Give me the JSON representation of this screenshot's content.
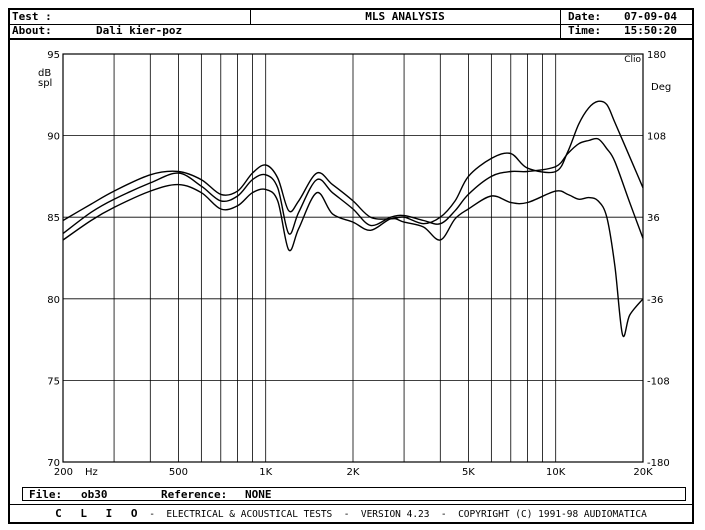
{
  "header": {
    "test_label": "Test :",
    "title": "MLS ANALYSIS",
    "date_label": "Date:",
    "date": "07-09-04",
    "about_label": "About:",
    "about": "Dali kier-poz",
    "time_label": "Time:",
    "time": "15:50:20"
  },
  "file_bar": {
    "file_label": "File:",
    "file": "ob30",
    "reference_label": "Reference:",
    "reference": "NONE"
  },
  "footer": {
    "brand": "C L I O",
    "text": " -  ELECTRICAL & ACOUSTICAL TESTS  -  VERSION 4.23  -  COPYRIGHT (C) 1991-98 AUDIOMATICA"
  },
  "chart_data": {
    "type": "line",
    "x_scale": "log",
    "xlim": [
      200,
      20000
    ],
    "ylim": [
      70,
      95
    ],
    "y2lim": [
      -180,
      180
    ],
    "ylabel": "dB spl",
    "y2label": "Deg",
    "corner_label": "Clio",
    "x_unit_label": "Hz",
    "x_tick_labels": [
      {
        "value": 200,
        "label": "200"
      },
      {
        "value": 500,
        "label": "500"
      },
      {
        "value": 1000,
        "label": "1K"
      },
      {
        "value": 2000,
        "label": "2K"
      },
      {
        "value": 5000,
        "label": "5K"
      },
      {
        "value": 10000,
        "label": "10K"
      },
      {
        "value": 20000,
        "label": "20K"
      }
    ],
    "y_ticks": [
      95,
      90,
      85,
      80,
      75,
      70
    ],
    "y2_ticks": [
      180,
      108,
      36,
      -36,
      -108,
      -180
    ],
    "grid": true,
    "series": [
      {
        "x": [
          200,
          250,
          300,
          400,
          500,
          600,
          700,
          800,
          900,
          1000,
          1100,
          1200,
          1300,
          1500,
          1700,
          2000,
          2300,
          2700,
          3000,
          3500,
          4000,
          4500,
          5000,
          6000,
          7000,
          8000,
          10000,
          11000,
          12000,
          13000,
          14000,
          15000,
          16000,
          18000,
          20000
        ],
        "y": [
          84.8,
          85.8,
          86.6,
          87.6,
          87.8,
          87.3,
          86.4,
          86.6,
          87.7,
          88.2,
          87.4,
          85.4,
          86.0,
          87.7,
          87.0,
          86.0,
          85.0,
          84.9,
          85.0,
          84.6,
          85.0,
          86.0,
          87.5,
          88.6,
          88.9,
          88.0,
          87.8,
          89.0,
          90.7,
          91.7,
          92.1,
          91.9,
          90.8,
          88.7,
          86.8
        ]
      },
      {
        "x": [
          200,
          250,
          300,
          400,
          500,
          600,
          700,
          800,
          900,
          1000,
          1100,
          1200,
          1300,
          1500,
          1700,
          2000,
          2300,
          2700,
          3000,
          3500,
          4000,
          4500,
          5000,
          6000,
          7000,
          8000,
          10000,
          11000,
          12000,
          13000,
          14000,
          15000,
          16000,
          18000,
          20000
        ],
        "y": [
          84.0,
          85.3,
          86.1,
          87.1,
          87.7,
          86.9,
          86.0,
          86.3,
          87.3,
          87.6,
          86.8,
          84.0,
          85.3,
          87.3,
          86.5,
          85.5,
          84.5,
          85.0,
          85.1,
          84.8,
          84.6,
          85.4,
          86.4,
          87.5,
          87.8,
          87.8,
          88.1,
          88.9,
          89.5,
          89.7,
          89.8,
          89.2,
          88.4,
          85.9,
          83.7
        ]
      },
      {
        "x": [
          200,
          250,
          300,
          400,
          500,
          600,
          700,
          800,
          900,
          1000,
          1100,
          1200,
          1300,
          1500,
          1700,
          2000,
          2300,
          2700,
          3000,
          3500,
          4000,
          4500,
          5000,
          6000,
          7000,
          8000,
          10000,
          11000,
          12000,
          13000,
          14000,
          15000,
          16000,
          17000,
          18000,
          20000
        ],
        "y": [
          83.6,
          84.8,
          85.6,
          86.6,
          87.0,
          86.5,
          85.5,
          85.7,
          86.5,
          86.7,
          86.0,
          83.0,
          84.3,
          86.5,
          85.2,
          84.7,
          84.2,
          84.9,
          84.7,
          84.4,
          83.6,
          84.9,
          85.5,
          86.3,
          85.9,
          85.9,
          86.6,
          86.4,
          86.1,
          86.2,
          86.0,
          85.0,
          82.0,
          77.8,
          79.0,
          80.0
        ]
      }
    ]
  }
}
